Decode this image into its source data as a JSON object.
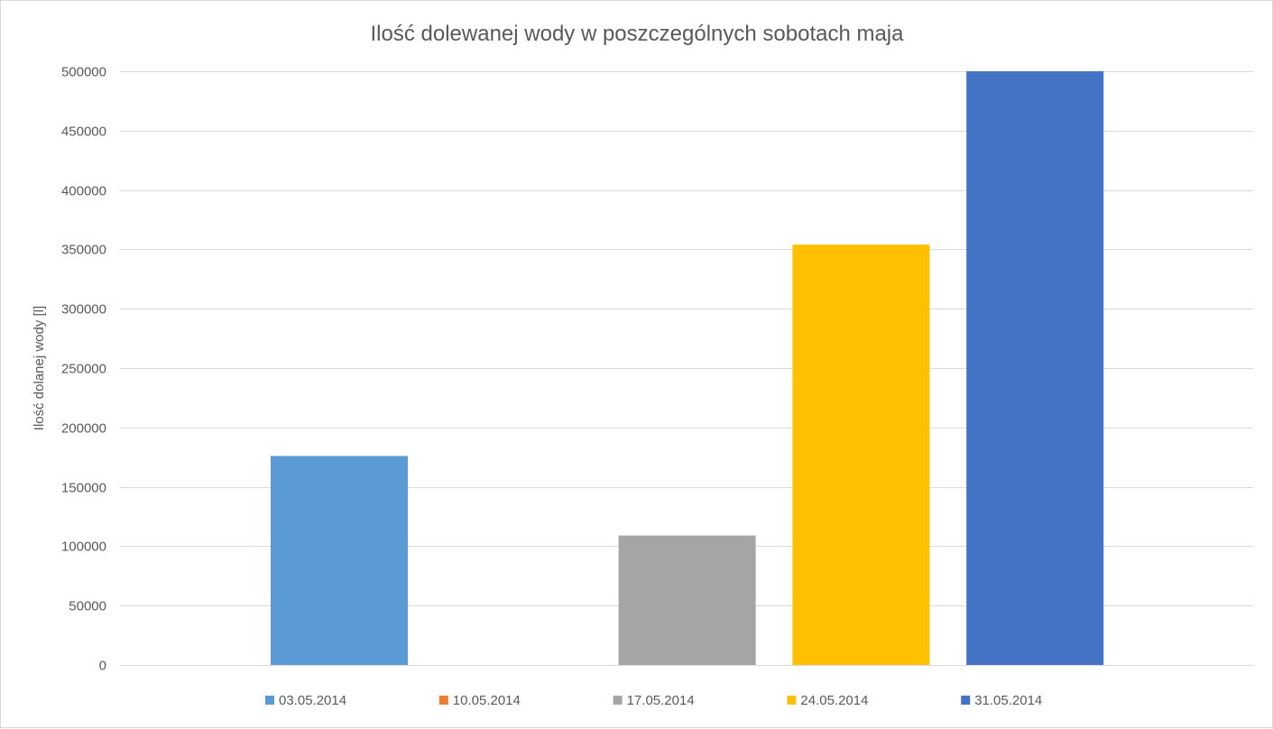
{
  "chart_data": {
    "type": "bar",
    "title": "Ilość dolewanej wody w poszczególnych  sobotach maja",
    "xlabel": "",
    "ylabel": "Ilość dolanej wody [l]",
    "ylim": [
      0,
      500000
    ],
    "yticks": [
      "0",
      "50000",
      "100000",
      "150000",
      "200000",
      "250000",
      "300000",
      "350000",
      "400000",
      "450000",
      "500000"
    ],
    "series": [
      {
        "name": "03.05.2014",
        "value": 176000,
        "color": "#5b9bd5"
      },
      {
        "name": "10.05.2014",
        "value": 0,
        "color": "#ed7d31"
      },
      {
        "name": "17.05.2014",
        "value": 109000,
        "color": "#a5a5a5"
      },
      {
        "name": "24.05.2014",
        "value": 354000,
        "color": "#ffc000"
      },
      {
        "name": "31.05.2014",
        "value": 500000,
        "color": "#4472c4"
      }
    ],
    "grid": true,
    "legend_position": "bottom"
  }
}
